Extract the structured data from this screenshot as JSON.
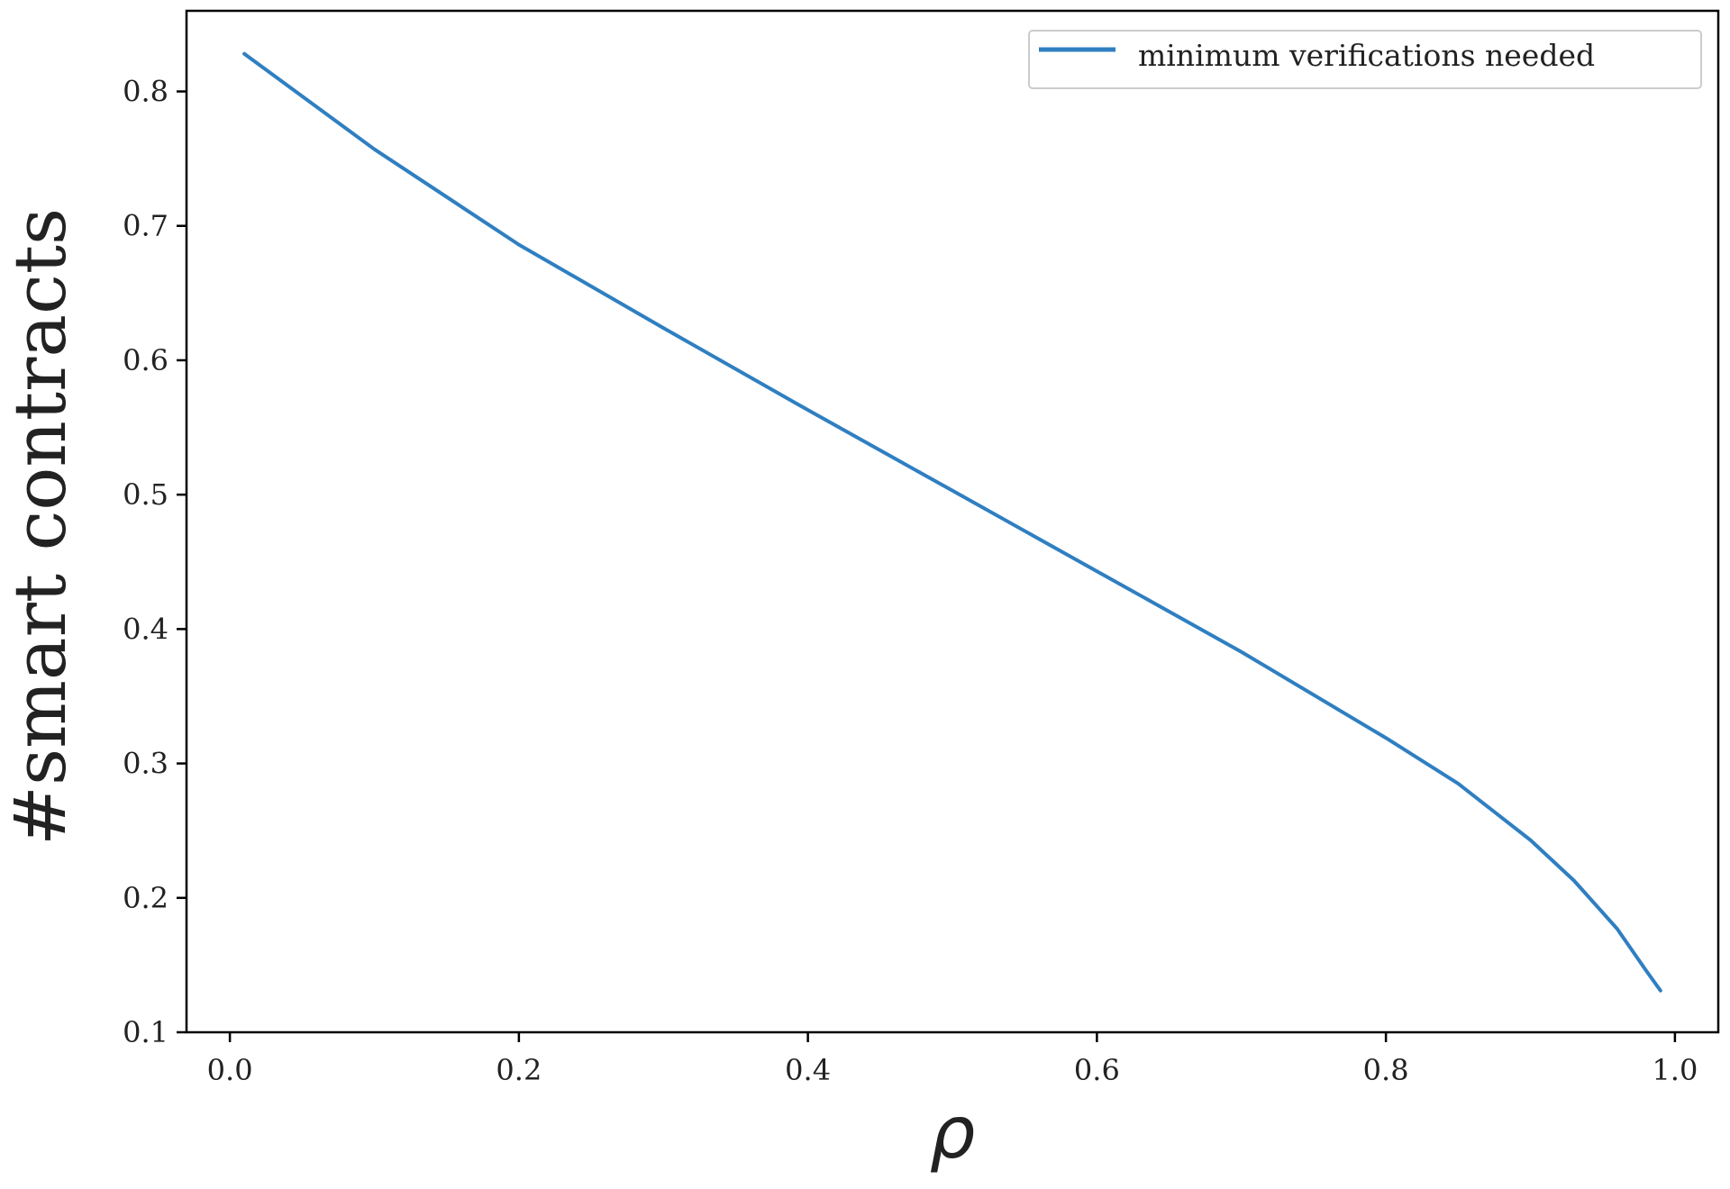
{
  "chart_data": {
    "type": "line",
    "title": "",
    "xlabel": "ρ",
    "ylabel": "#smart contracts",
    "xlim": [
      -0.03,
      1.03
    ],
    "ylim": [
      0.1,
      0.86
    ],
    "x_ticks": [
      "0.0",
      "0.2",
      "0.4",
      "0.6",
      "0.8",
      "1.0"
    ],
    "y_ticks": [
      "0.1",
      "0.2",
      "0.3",
      "0.4",
      "0.5",
      "0.6",
      "0.7",
      "0.8"
    ],
    "grid": false,
    "legend_position": "top-right",
    "series": [
      {
        "name": "minimum verifications needed",
        "color": "#2f7fc1",
        "x": [
          0.01,
          0.1,
          0.2,
          0.3,
          0.4,
          0.5,
          0.6,
          0.7,
          0.8,
          0.85,
          0.9,
          0.93,
          0.96,
          0.98,
          0.99
        ],
        "y": [
          0.828,
          0.757,
          0.686,
          0.624,
          0.563,
          0.503,
          0.443,
          0.383,
          0.319,
          0.285,
          0.243,
          0.213,
          0.177,
          0.146,
          0.131
        ]
      }
    ]
  }
}
